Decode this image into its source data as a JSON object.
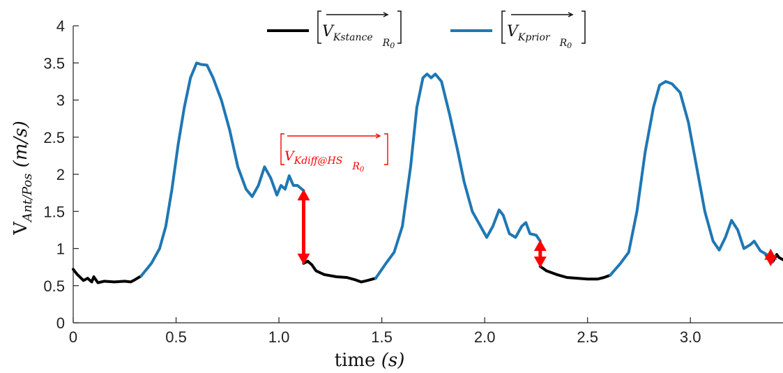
{
  "chart_data": {
    "type": "line",
    "xlabel": "time (s)",
    "ylabel": "V_Ant/Pos (m/s)",
    "xlim": [
      0,
      3.45
    ],
    "ylim": [
      0,
      4
    ],
    "xticks": [
      0,
      0.5,
      1.0,
      1.5,
      2.0,
      2.5,
      3.0
    ],
    "xtick_labels": [
      "0",
      "0.5",
      "1.0",
      "1.5",
      "2.0",
      "2.5",
      "3.0"
    ],
    "yticks": [
      0,
      0.5,
      1,
      1.5,
      2,
      2.5,
      3,
      3.5,
      4
    ],
    "ytick_labels": [
      "0",
      "0.5",
      "1",
      "1.5",
      "2",
      "2.5",
      "3",
      "3.5",
      "4"
    ],
    "grid": false,
    "legend_position": "top",
    "series": [
      {
        "name": "[V_Kstance]_R0",
        "color": "#000000",
        "segments": [
          [
            [
              0.0,
              0.72
            ],
            [
              0.02,
              0.65
            ],
            [
              0.05,
              0.57
            ],
            [
              0.07,
              0.6
            ],
            [
              0.09,
              0.55
            ],
            [
              0.1,
              0.62
            ],
            [
              0.12,
              0.54
            ],
            [
              0.15,
              0.56
            ],
            [
              0.2,
              0.55
            ],
            [
              0.25,
              0.56
            ],
            [
              0.28,
              0.55
            ],
            [
              0.3,
              0.58
            ],
            [
              0.33,
              0.63
            ]
          ],
          [
            [
              1.12,
              0.8
            ],
            [
              1.14,
              0.83
            ],
            [
              1.16,
              0.78
            ],
            [
              1.18,
              0.7
            ],
            [
              1.22,
              0.65
            ],
            [
              1.28,
              0.62
            ],
            [
              1.33,
              0.61
            ],
            [
              1.37,
              0.58
            ],
            [
              1.4,
              0.55
            ],
            [
              1.43,
              0.57
            ],
            [
              1.47,
              0.6
            ]
          ],
          [
            [
              2.27,
              0.76
            ],
            [
              2.3,
              0.7
            ],
            [
              2.35,
              0.65
            ],
            [
              2.4,
              0.61
            ],
            [
              2.45,
              0.6
            ],
            [
              2.5,
              0.59
            ],
            [
              2.55,
              0.59
            ],
            [
              2.58,
              0.61
            ],
            [
              2.61,
              0.64
            ]
          ],
          [
            [
              3.4,
              0.82
            ],
            [
              3.42,
              0.92
            ],
            [
              3.43,
              0.88
            ],
            [
              3.45,
              0.85
            ]
          ]
        ]
      },
      {
        "name": "[V_Kprior]_R0",
        "color": "#1f77b4",
        "segments": [
          [
            [
              0.33,
              0.63
            ],
            [
              0.38,
              0.8
            ],
            [
              0.42,
              1.0
            ],
            [
              0.45,
              1.3
            ],
            [
              0.48,
              1.8
            ],
            [
              0.51,
              2.4
            ],
            [
              0.54,
              2.9
            ],
            [
              0.57,
              3.3
            ],
            [
              0.6,
              3.5
            ],
            [
              0.62,
              3.48
            ],
            [
              0.65,
              3.47
            ],
            [
              0.68,
              3.3
            ],
            [
              0.72,
              3.0
            ],
            [
              0.76,
              2.6
            ],
            [
              0.8,
              2.1
            ],
            [
              0.84,
              1.8
            ],
            [
              0.87,
              1.7
            ],
            [
              0.9,
              1.85
            ],
            [
              0.93,
              2.1
            ],
            [
              0.96,
              1.95
            ],
            [
              0.99,
              1.72
            ],
            [
              1.01,
              1.85
            ],
            [
              1.03,
              1.8
            ],
            [
              1.05,
              1.98
            ],
            [
              1.07,
              1.85
            ],
            [
              1.09,
              1.85
            ],
            [
              1.12,
              1.78
            ]
          ],
          [
            [
              1.47,
              0.6
            ],
            [
              1.52,
              0.8
            ],
            [
              1.56,
              0.95
            ],
            [
              1.6,
              1.3
            ],
            [
              1.64,
              2.1
            ],
            [
              1.67,
              2.9
            ],
            [
              1.7,
              3.3
            ],
            [
              1.72,
              3.35
            ],
            [
              1.74,
              3.3
            ],
            [
              1.76,
              3.35
            ],
            [
              1.79,
              3.25
            ],
            [
              1.83,
              2.8
            ],
            [
              1.87,
              2.3
            ],
            [
              1.9,
              1.9
            ],
            [
              1.94,
              1.5
            ],
            [
              1.98,
              1.3
            ],
            [
              2.01,
              1.15
            ],
            [
              2.04,
              1.3
            ],
            [
              2.07,
              1.52
            ],
            [
              2.09,
              1.45
            ],
            [
              2.12,
              1.2
            ],
            [
              2.15,
              1.15
            ],
            [
              2.18,
              1.3
            ],
            [
              2.2,
              1.35
            ],
            [
              2.22,
              1.2
            ],
            [
              2.25,
              1.18
            ],
            [
              2.27,
              1.1
            ]
          ],
          [
            [
              2.61,
              0.64
            ],
            [
              2.66,
              0.8
            ],
            [
              2.7,
              0.95
            ],
            [
              2.74,
              1.5
            ],
            [
              2.78,
              2.3
            ],
            [
              2.82,
              2.9
            ],
            [
              2.85,
              3.2
            ],
            [
              2.88,
              3.25
            ],
            [
              2.91,
              3.22
            ],
            [
              2.95,
              3.1
            ],
            [
              2.99,
              2.7
            ],
            [
              3.03,
              2.1
            ],
            [
              3.07,
              1.5
            ],
            [
              3.11,
              1.1
            ],
            [
              3.14,
              0.98
            ],
            [
              3.17,
              1.15
            ],
            [
              3.2,
              1.38
            ],
            [
              3.23,
              1.25
            ],
            [
              3.26,
              1.0
            ],
            [
              3.29,
              1.05
            ],
            [
              3.31,
              1.1
            ],
            [
              3.34,
              0.97
            ],
            [
              3.37,
              0.92
            ],
            [
              3.4,
              0.82
            ]
          ]
        ]
      }
    ],
    "annotations": [
      {
        "label": "[V_Kdiff@HS]_R0",
        "x": 1.12,
        "y_from": 0.8,
        "y_to": 1.78,
        "color": "#ff0000"
      },
      {
        "x": 2.27,
        "y_from": 0.76,
        "y_to": 1.1,
        "color": "#ff0000"
      },
      {
        "x": 3.39,
        "y_from": 0.78,
        "y_to": 0.98,
        "color": "#ff0000"
      }
    ]
  },
  "legend": {
    "stance_main": "V",
    "stance_sub": "Kstance",
    "stance_frame": "R",
    "stance_frame_sub": "0",
    "prior_main": "V",
    "prior_sub": "Kprior",
    "prior_frame": "R",
    "prior_frame_sub": "0"
  },
  "annotation_text": {
    "main": "V",
    "sub": "Kdiff@HS",
    "frame": "R",
    "frame_sub": "0"
  },
  "axis_text": {
    "x_main": "time ",
    "x_unit": "(s)",
    "y_main": "V",
    "y_sub": "Ant/Pos",
    "y_unit": " (m/s)"
  }
}
